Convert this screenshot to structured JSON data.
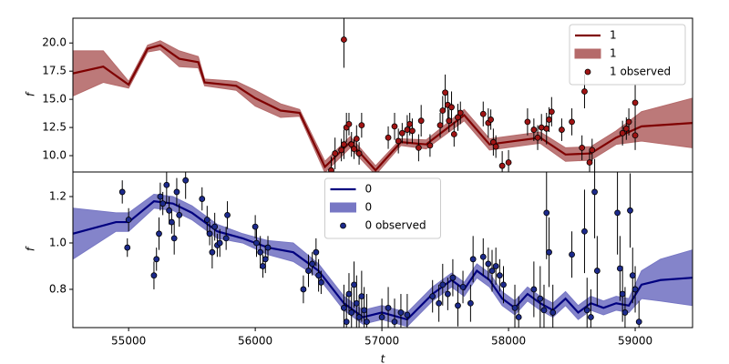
{
  "chart_data": [
    {
      "type": "line",
      "ylabel": "f",
      "legend": "upper right",
      "xlim": [
        54560,
        59453
      ],
      "ylim": [
        8.55,
        22.2
      ],
      "yticks": [
        {
          "value": 10,
          "label": "10.0"
        },
        12.5,
        {
          "value": 15,
          "label": "15.0"
        },
        17.5,
        {
          "value": 20,
          "label": "20.0"
        }
      ],
      "series": [
        {
          "name": "1",
          "color": "#7f0000",
          "x": [
            54560,
            54800,
            55000,
            55150,
            55250,
            55400,
            55550,
            55600,
            55850,
            56000,
            56200,
            56350,
            56550,
            56750,
            56950,
            57150,
            57350,
            57650,
            57850,
            58050,
            58250,
            58450,
            58650,
            58850,
            59050,
            59453
          ],
          "values": [
            17.3,
            17.9,
            16.3,
            19.5,
            19.8,
            18.6,
            18.3,
            16.5,
            16.2,
            15.1,
            14.0,
            13.8,
            9.0,
            11.2,
            8.7,
            11.2,
            11.0,
            13.6,
            11.0,
            11.3,
            11.6,
            10.1,
            10.2,
            11.6,
            12.6,
            12.9
          ]
        },
        {
          "name": "1",
          "color": "#b56a6a",
          "x": [
            54560,
            54800,
            55000,
            55150,
            55250,
            55400,
            55550,
            55600,
            55850,
            56000,
            56200,
            56350,
            56550,
            56750,
            56950,
            57150,
            57350,
            57650,
            57850,
            58050,
            58250,
            58450,
            58650,
            58850,
            59050,
            59453
          ],
          "lower": [
            15.3,
            16.5,
            16.0,
            19.2,
            19.4,
            17.9,
            17.8,
            16.2,
            15.8,
            14.4,
            13.4,
            13.5,
            8.5,
            10.7,
            8.3,
            10.9,
            10.6,
            13.1,
            10.5,
            10.8,
            11.1,
            9.5,
            9.6,
            11.0,
            11.3,
            10.7
          ],
          "upper": [
            19.3,
            19.3,
            16.6,
            19.8,
            20.2,
            19.3,
            18.8,
            16.8,
            16.6,
            15.8,
            14.6,
            14.1,
            9.5,
            11.7,
            9.1,
            11.5,
            11.4,
            14.1,
            11.5,
            11.8,
            12.1,
            10.7,
            10.8,
            12.2,
            13.9,
            15.1
          ]
        },
        {
          "name": "1 observed",
          "color": "#a01414",
          "x": [
            56600,
            56630,
            56680,
            56700,
            56700,
            56720,
            56740,
            56760,
            56780,
            56800,
            56820,
            56840,
            57050,
            57100,
            57130,
            57160,
            57200,
            57220,
            57240,
            57290,
            57310,
            57380,
            57460,
            57480,
            57500,
            57520,
            57530,
            57550,
            57570,
            57600,
            57620,
            57800,
            57840,
            57860,
            57880,
            57900,
            57950,
            58000,
            58150,
            58200,
            58230,
            58260,
            58300,
            58320,
            58340,
            58420,
            58500,
            58580,
            58600,
            58640,
            58660,
            58680,
            58900,
            58930,
            58950,
            59000,
            59000
          ],
          "values": [
            8.7,
            10.2,
            10.5,
            20.3,
            11.0,
            12.5,
            12.8,
            11.0,
            10.6,
            11.5,
            10.2,
            12.7,
            11.6,
            12.6,
            11.3,
            12.0,
            12.3,
            12.8,
            12.2,
            10.7,
            13.1,
            10.9,
            12.7,
            14.0,
            15.6,
            14.5,
            13.1,
            14.3,
            11.9,
            13.4,
            13.8,
            13.7,
            12.9,
            13.2,
            11.2,
            10.8,
            9.1,
            9.4,
            13.0,
            12.3,
            11.6,
            12.5,
            12.4,
            13.2,
            13.9,
            12.3,
            13.0,
            10.7,
            15.7,
            9.4,
            10.5,
            8.3,
            12.0,
            12.4,
            13.0,
            14.7,
            11.8
          ],
          "errors": [
            1.2,
            1.4,
            1.0,
            2.5,
            1.3,
            1.3,
            1.0,
            1.1,
            0.9,
            1.2,
            1.0,
            1.1,
            1.0,
            1.2,
            1.1,
            0.9,
            1.3,
            1.0,
            1.1,
            1.2,
            1.4,
            1.0,
            1.1,
            1.3,
            1.6,
            1.2,
            1.0,
            1.4,
            1.1,
            1.2,
            1.0,
            1.1,
            1.3,
            0.9,
            1.2,
            1.0,
            1.3,
            1.1,
            1.2,
            1.0,
            1.1,
            1.2,
            1.4,
            1.1,
            1.3,
            1.0,
            1.2,
            1.1,
            1.5,
            1.2,
            1.0,
            1.4,
            1.1,
            1.0,
            1.2,
            1.6,
            1.3
          ]
        }
      ]
    },
    {
      "type": "line",
      "xlabel": "t",
      "ylabel": "f",
      "legend": "upper center",
      "xlim": [
        54560,
        59453
      ],
      "ylim": [
        0.635,
        1.306
      ],
      "xticks": [
        55000,
        56000,
        57000,
        58000,
        59000
      ],
      "yticks": [
        0.8,
        {
          "value": 1,
          "label": "1.0"
        },
        1.2
      ],
      "series": [
        {
          "name": "0",
          "color": "#00007f",
          "x": [
            54560,
            54900,
            55000,
            55200,
            55350,
            55500,
            55700,
            55900,
            56100,
            56300,
            56500,
            56700,
            56850,
            57000,
            57200,
            57400,
            57550,
            57650,
            57750,
            57850,
            57950,
            58050,
            58150,
            58250,
            58350,
            58450,
            58550,
            58650,
            58750,
            58850,
            58950,
            59050,
            59200,
            59453
          ],
          "values": [
            1.04,
            1.09,
            1.09,
            1.18,
            1.17,
            1.13,
            1.05,
            1.02,
            0.98,
            0.96,
            0.88,
            0.74,
            0.68,
            0.7,
            0.67,
            0.78,
            0.84,
            0.8,
            0.88,
            0.84,
            0.76,
            0.72,
            0.78,
            0.74,
            0.71,
            0.76,
            0.7,
            0.74,
            0.72,
            0.74,
            0.73,
            0.82,
            0.84,
            0.85
          ]
        },
        {
          "name": "0",
          "color": "#7777c4",
          "x": [
            54560,
            54900,
            55000,
            55200,
            55350,
            55500,
            55700,
            55900,
            56100,
            56300,
            56500,
            56700,
            56850,
            57000,
            57200,
            57400,
            57550,
            57650,
            57750,
            57850,
            57950,
            58050,
            58150,
            58250,
            58350,
            58450,
            58550,
            58650,
            58750,
            58850,
            58950,
            59050,
            59200,
            59453
          ],
          "lower": [
            0.93,
            1.05,
            1.05,
            1.15,
            1.14,
            1.1,
            1.02,
            1.0,
            0.95,
            0.92,
            0.85,
            0.71,
            0.65,
            0.67,
            0.64,
            0.75,
            0.81,
            0.77,
            0.85,
            0.81,
            0.73,
            0.69,
            0.75,
            0.71,
            0.68,
            0.73,
            0.67,
            0.71,
            0.69,
            0.71,
            0.7,
            0.76,
            0.75,
            0.73
          ],
          "upper": [
            1.15,
            1.13,
            1.13,
            1.21,
            1.2,
            1.16,
            1.08,
            1.04,
            1.01,
            1.0,
            0.91,
            0.77,
            0.71,
            0.73,
            0.7,
            0.81,
            0.87,
            0.83,
            0.91,
            0.87,
            0.79,
            0.75,
            0.81,
            0.77,
            0.74,
            0.79,
            0.73,
            0.77,
            0.75,
            0.77,
            0.76,
            0.88,
            0.93,
            0.97
          ]
        },
        {
          "name": "0 observed",
          "color": "#1c2a8c",
          "x": [
            54950,
            54990,
            55000,
            55200,
            55220,
            55240,
            55250,
            55270,
            55300,
            55320,
            55340,
            55360,
            55380,
            55400,
            55450,
            55580,
            55620,
            55640,
            55660,
            55680,
            55700,
            55720,
            55770,
            55780,
            56000,
            56010,
            56040,
            56060,
            56080,
            56100,
            56380,
            56420,
            56450,
            56480,
            56500,
            56520,
            56700,
            56720,
            56740,
            56760,
            56780,
            56800,
            56820,
            56840,
            56860,
            56880,
            57000,
            57050,
            57100,
            57150,
            57200,
            57400,
            57450,
            57480,
            57520,
            57560,
            57600,
            57640,
            57700,
            57720,
            57800,
            57840,
            57870,
            57900,
            57930,
            57960,
            58050,
            58080,
            58200,
            58250,
            58280,
            58300,
            58320,
            58350,
            58500,
            58600,
            58620,
            58650,
            58680,
            58700,
            58860,
            58880,
            58900,
            58920,
            58960,
            58980,
            59000,
            59030
          ],
          "values": [
            1.22,
            0.98,
            1.1,
            0.86,
            0.93,
            1.04,
            1.2,
            1.17,
            1.25,
            1.14,
            1.09,
            1.02,
            1.22,
            1.12,
            1.27,
            1.19,
            1.1,
            1.04,
            0.96,
            1.07,
            0.99,
            1.0,
            1.02,
            1.12,
            1.07,
            1.0,
            0.96,
            0.9,
            0.93,
            0.98,
            0.8,
            0.88,
            0.91,
            0.96,
            0.86,
            0.83,
            0.72,
            0.66,
            0.78,
            0.7,
            0.82,
            0.74,
            0.68,
            0.77,
            0.71,
            0.66,
            0.68,
            0.72,
            0.66,
            0.7,
            0.69,
            0.77,
            0.74,
            0.82,
            0.78,
            0.85,
            0.73,
            0.81,
            0.74,
            0.93,
            0.94,
            0.91,
            0.88,
            0.9,
            0.86,
            0.82,
            0.72,
            0.68,
            0.8,
            0.76,
            0.71,
            1.13,
            0.96,
            0.7,
            0.95,
            1.05,
            0.71,
            0.68,
            1.22,
            0.88,
            1.13,
            0.89,
            0.78,
            0.7,
            1.14,
            0.86,
            0.8,
            0.66
          ],
          "errors": [
            0.05,
            0.04,
            0.05,
            0.06,
            0.05,
            0.07,
            0.06,
            0.05,
            0.08,
            0.06,
            0.05,
            0.07,
            0.06,
            0.05,
            0.08,
            0.05,
            0.06,
            0.05,
            0.07,
            0.06,
            0.05,
            0.06,
            0.05,
            0.06,
            0.05,
            0.06,
            0.07,
            0.05,
            0.06,
            0.05,
            0.06,
            0.07,
            0.05,
            0.06,
            0.07,
            0.05,
            0.1,
            0.12,
            0.09,
            0.11,
            0.1,
            0.12,
            0.09,
            0.11,
            0.1,
            0.12,
            0.08,
            0.09,
            0.1,
            0.08,
            0.09,
            0.07,
            0.08,
            0.09,
            0.07,
            0.08,
            0.09,
            0.07,
            0.08,
            0.1,
            0.08,
            0.07,
            0.09,
            0.08,
            0.07,
            0.08,
            0.1,
            0.09,
            0.12,
            0.14,
            0.11,
            0.2,
            0.15,
            0.12,
            0.1,
            0.18,
            0.14,
            0.12,
            0.2,
            0.15,
            0.18,
            0.14,
            0.12,
            0.11,
            0.16,
            0.12,
            0.1,
            0.09
          ]
        }
      ]
    }
  ]
}
